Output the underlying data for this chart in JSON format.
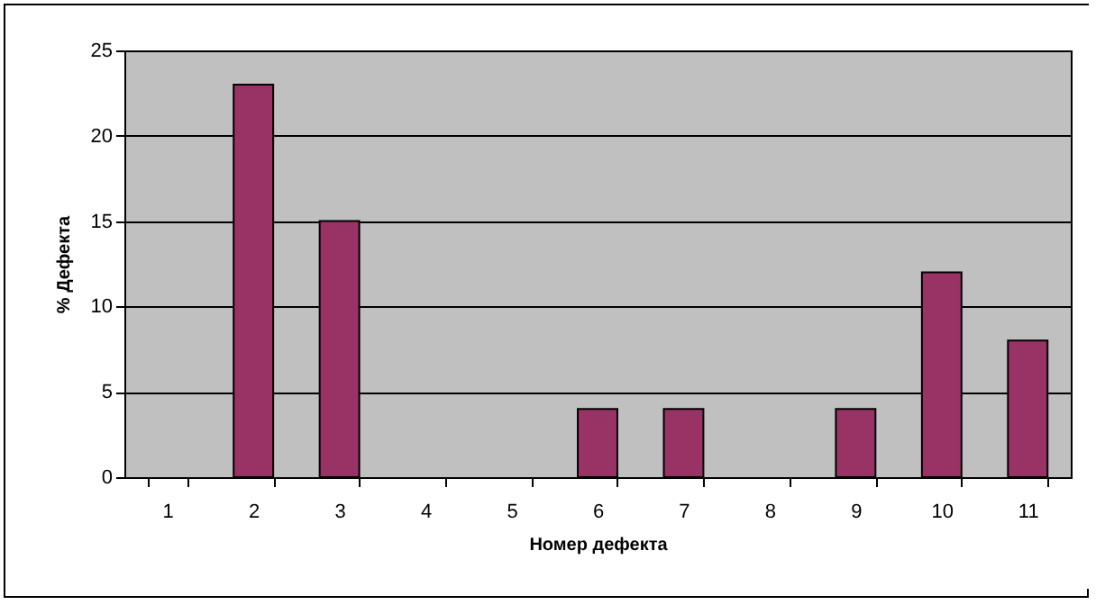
{
  "chart_data": {
    "type": "bar",
    "xlabel": "Номер дефекта",
    "ylabel": "% Дефекта",
    "categories": [
      "1",
      "2",
      "3",
      "4",
      "5",
      "6",
      "7",
      "8",
      "9",
      "10",
      "11"
    ],
    "values": [
      null,
      23,
      15,
      null,
      null,
      4,
      4,
      null,
      4,
      12,
      8
    ],
    "color": "#993366",
    "ylim": [
      0,
      25
    ],
    "yticks": [
      0,
      5,
      10,
      15,
      20,
      25
    ],
    "grid": "y"
  }
}
